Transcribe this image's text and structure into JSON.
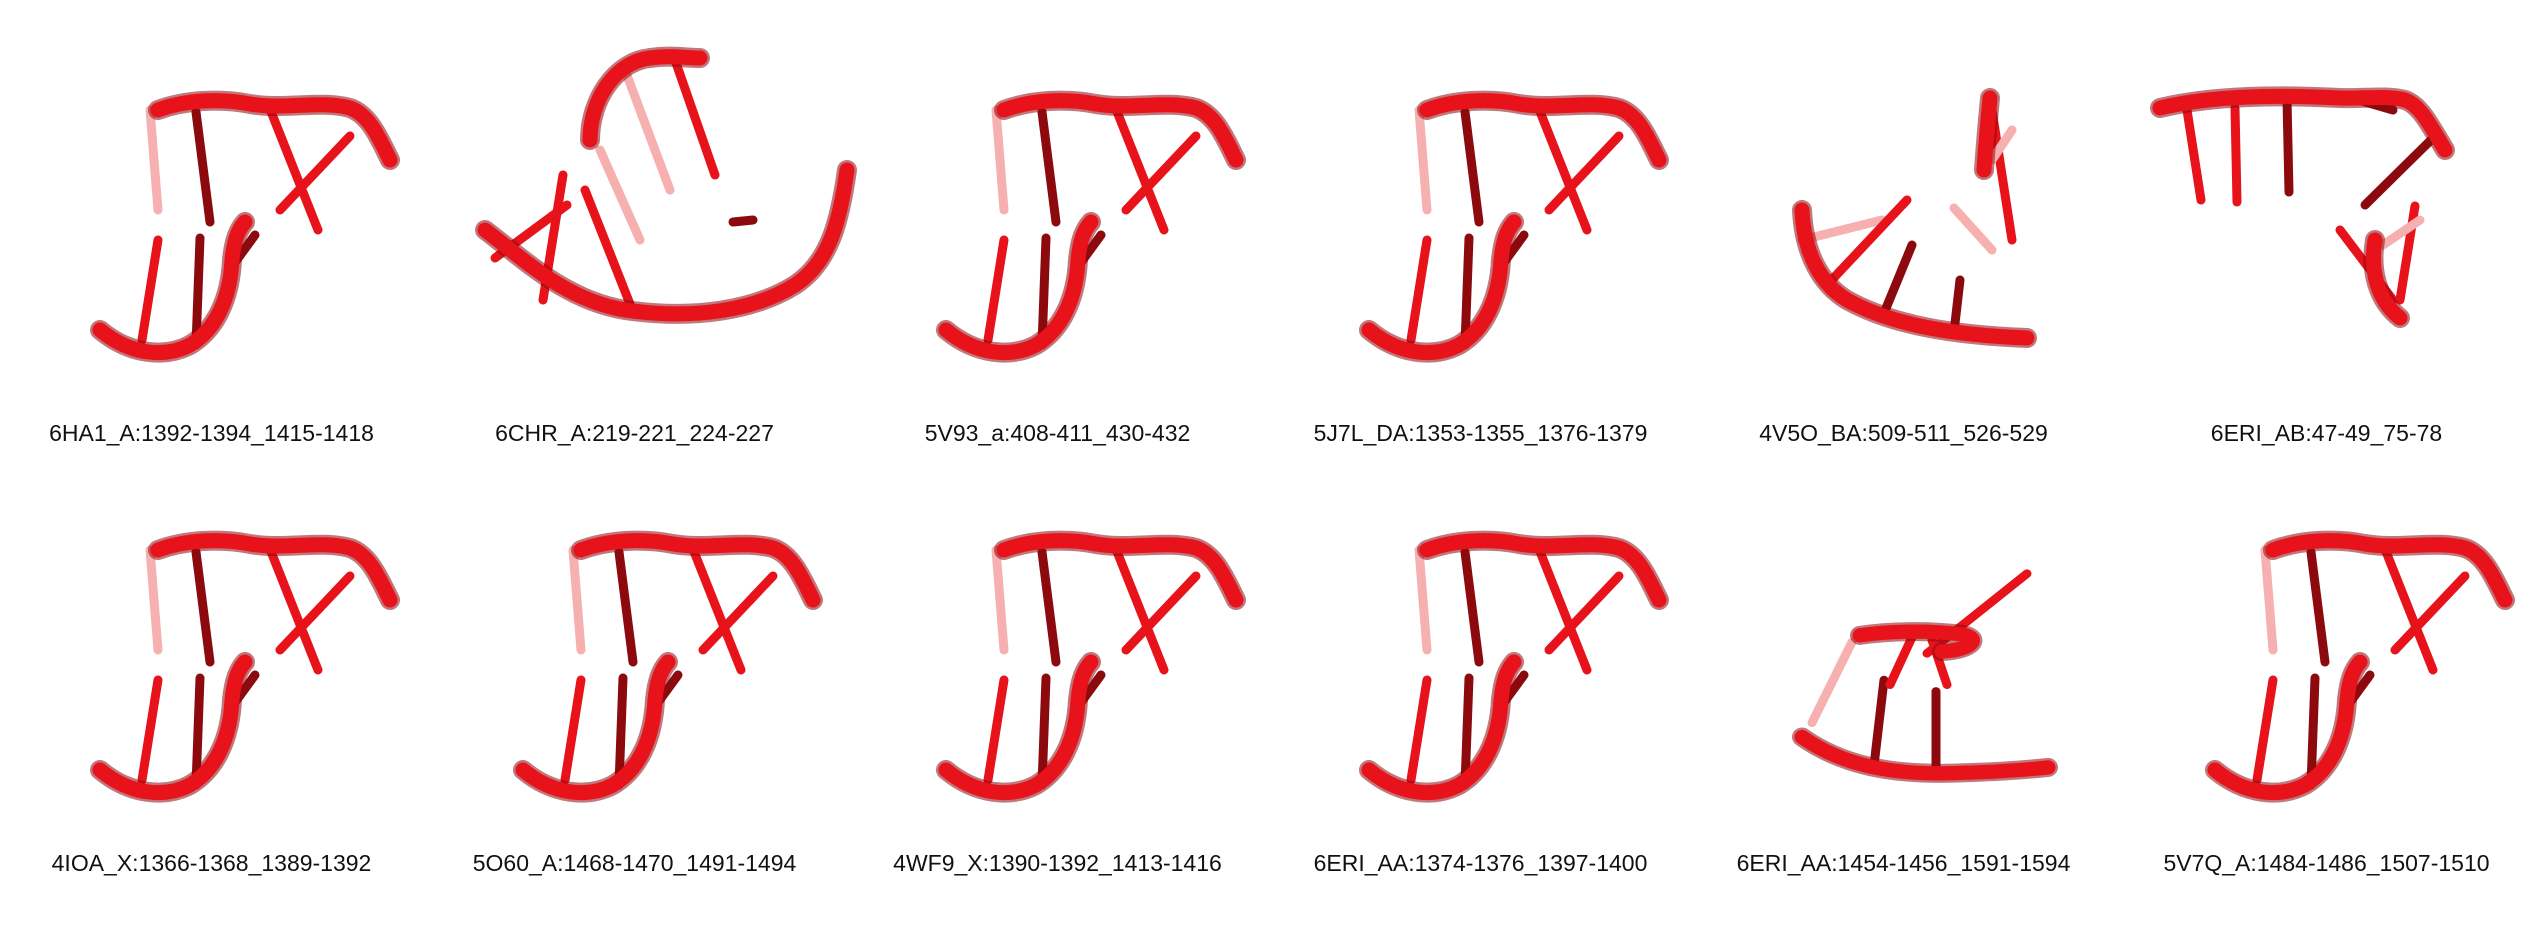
{
  "structures": [
    {
      "label": "6HA1_A:1392-1394_1415-1418",
      "shape": "hairpin"
    },
    {
      "label": "6CHR_A:219-221_224-227",
      "shape": "bowl"
    },
    {
      "label": "5V93_a:408-411_430-432",
      "shape": "hairpin"
    },
    {
      "label": "5J7L_DA:1353-1355_1376-1379",
      "shape": "hairpin"
    },
    {
      "label": "4V5O_BA:509-511_526-529",
      "shape": "fan"
    },
    {
      "label": "6ERI_AB:47-49_75-78",
      "shape": "funnel"
    },
    {
      "label": "4IOA_X:1366-1368_1389-1392",
      "shape": "hairpin"
    },
    {
      "label": "5O60_A:1468-1470_1491-1494",
      "shape": "hairpin"
    },
    {
      "label": "4WF9_X:1390-1392_1413-1416",
      "shape": "hairpin"
    },
    {
      "label": "6ERI_AA:1374-1376_1397-1400",
      "shape": "hairpin"
    },
    {
      "label": "6ERI_AA:1454-1456_1591-1594",
      "shape": "tilted"
    },
    {
      "label": "5V7Q_A:1484-1486_1507-1510",
      "shape": "hairpin"
    }
  ],
  "colors": {
    "strand": "#e8121b",
    "dark": "#8c0a0e",
    "light": "#f7b0b0",
    "text": "#111111"
  }
}
